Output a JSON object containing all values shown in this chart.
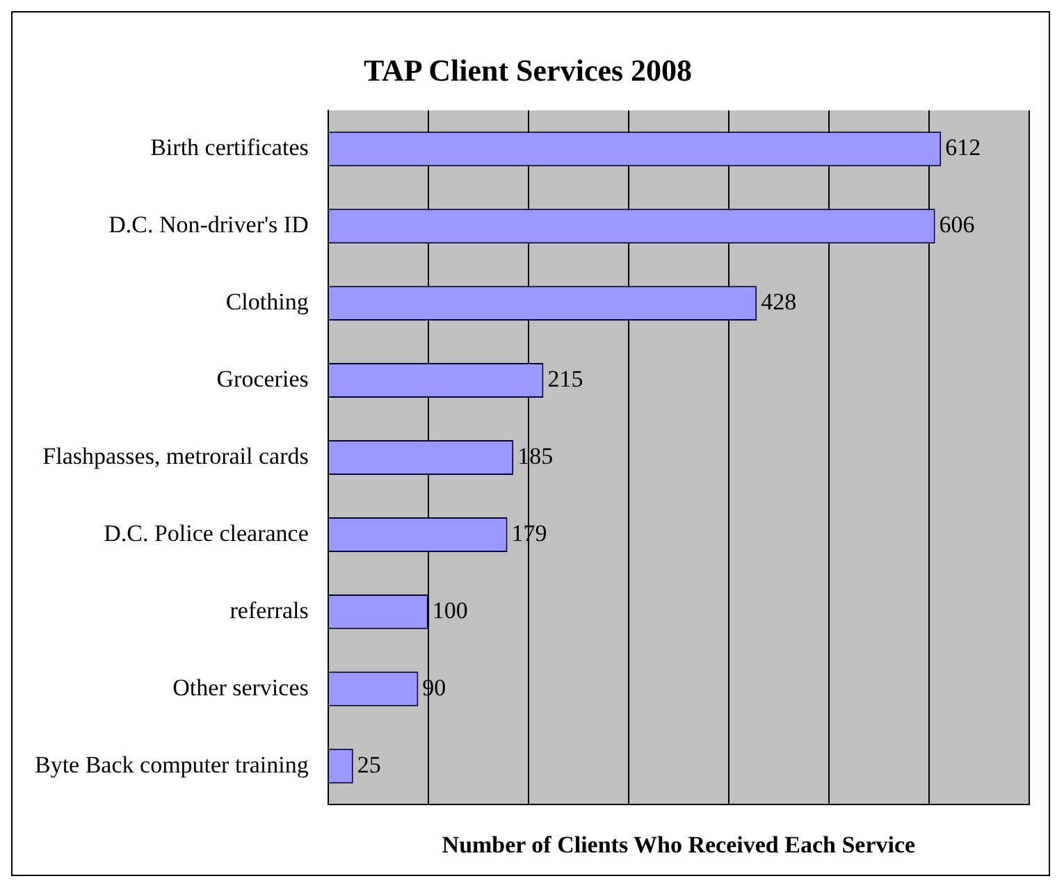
{
  "chart_data": {
    "type": "bar",
    "orientation": "horizontal",
    "title": "TAP Client Services 2008",
    "xlabel": "Number of Clients Who Received Each Service",
    "categories": [
      "Birth certificates",
      "D.C. Non-driver's ID",
      "Clothing",
      "Groceries",
      "Flashpasses, metrorail cards",
      "D.C. Police clearance",
      "referrals",
      "Other services",
      "Byte Back computer training"
    ],
    "values": [
      612,
      606,
      428,
      215,
      185,
      179,
      100,
      90,
      25
    ],
    "color": "#9999ff",
    "data_labels": true,
    "xlim": [
      0,
      700
    ],
    "xticks": [
      {
        "value": 0,
        "label": null
      },
      {
        "value": 100,
        "label": null
      },
      {
        "value": 200,
        "label": null
      },
      {
        "value": 300,
        "label": null
      },
      {
        "value": 400,
        "label": null
      },
      {
        "value": 500,
        "label": null
      },
      {
        "value": 600,
        "label": null
      },
      {
        "value": 700,
        "label": null
      }
    ],
    "grid": "x",
    "legend": false,
    "tick_labels": "y"
  }
}
